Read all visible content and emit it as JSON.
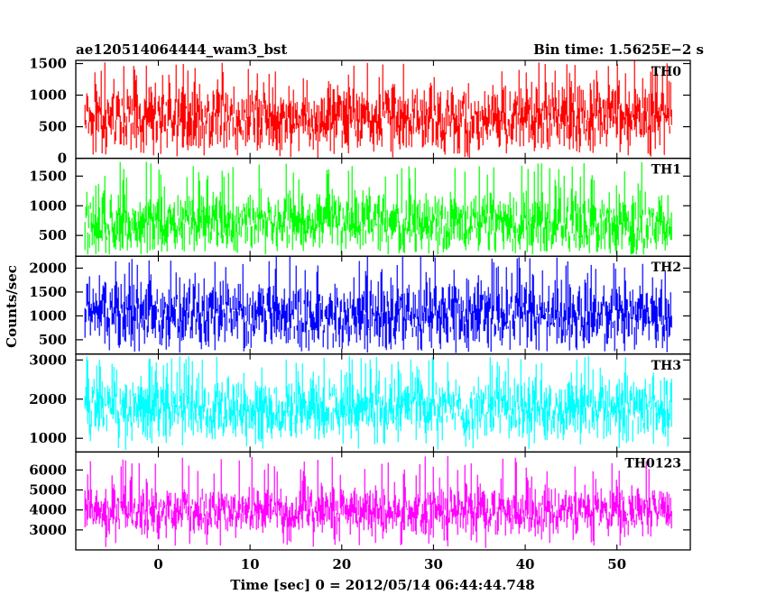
{
  "chart_data": {
    "type": "line",
    "title": "ae120514064444_wam3_bst",
    "subtitle": "Bin time: 1.5625E−2 s",
    "xlabel": "Time [sec] 0 = 2012/05/14 06:44:44.748",
    "ylabel": "Counts/sec",
    "xlim": [
      -9,
      58
    ],
    "x_range": [
      -8,
      56
    ],
    "xticks": [
      0,
      10,
      20,
      30,
      40,
      50
    ],
    "xtick_labels": [
      "0",
      "10",
      "20",
      "30",
      "40",
      "50"
    ],
    "grid": false,
    "panels": [
      {
        "name": "TH0",
        "color": "#ff0000",
        "ylim": [
          0,
          1550
        ],
        "yticks": [
          0,
          500,
          1000,
          1500
        ],
        "ytick_labels": [
          "0",
          "500",
          "1000",
          "1500"
        ],
        "baseline": 650,
        "spread": 300,
        "spike_max": 1550,
        "dip_min": 0
      },
      {
        "name": "TH1",
        "color": "#00ff00",
        "ylim": [
          150,
          1800
        ],
        "yticks": [
          500,
          1000,
          1500
        ],
        "ytick_labels": [
          "500",
          "1000",
          "1500"
        ],
        "baseline": 700,
        "spread": 280,
        "spike_max": 1750,
        "dip_min": 180
      },
      {
        "name": "TH2",
        "color": "#0000ff",
        "ylim": [
          200,
          2250
        ],
        "yticks": [
          500,
          1000,
          1500,
          2000
        ],
        "ytick_labels": [
          "500",
          "1000",
          "1500",
          "2000"
        ],
        "baseline": 1000,
        "spread": 380,
        "spike_max": 2250,
        "dip_min": 220
      },
      {
        "name": "TH3",
        "color": "#00ffff",
        "ylim": [
          650,
          3150
        ],
        "yticks": [
          1000,
          2000,
          3000
        ],
        "ytick_labels": [
          "1000",
          "2000",
          "3000"
        ],
        "baseline": 1750,
        "spread": 420,
        "spike_max": 3100,
        "dip_min": 700
      },
      {
        "name": "TH0123",
        "color": "#ff00ff",
        "ylim": [
          2000,
          6900
        ],
        "yticks": [
          3000,
          4000,
          5000,
          6000
        ],
        "ytick_labels": [
          "3000",
          "4000",
          "5000",
          "6000"
        ],
        "baseline": 3900,
        "spread": 650,
        "spike_max": 6700,
        "dip_min": 2100
      }
    ]
  }
}
